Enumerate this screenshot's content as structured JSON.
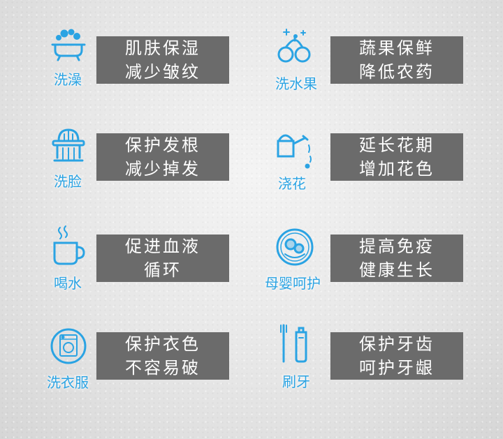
{
  "items": [
    {
      "label": "洗澡",
      "icon": "bathtub-icon",
      "line1": "肌肤保湿",
      "line2": "减少皱纹"
    },
    {
      "label": "洗水果",
      "icon": "fruit-icon",
      "line1": "蔬果保鲜",
      "line2": "降低农药"
    },
    {
      "label": "洗脸",
      "icon": "washbasin-icon",
      "line1": "保护发根",
      "line2": "减少掉发"
    },
    {
      "label": "浇花",
      "icon": "watering-can-icon",
      "line1": "延长花期",
      "line2": "增加花色"
    },
    {
      "label": "喝水",
      "icon": "cup-icon",
      "line1": "促进血液",
      "line2": "循环"
    },
    {
      "label": "母婴呵护",
      "icon": "baby-icon",
      "line1": "提高免疫",
      "line2": "健康生长"
    },
    {
      "label": "洗衣服",
      "icon": "washing-machine-icon",
      "line1": "保护衣色",
      "line2": "不容易破"
    },
    {
      "label": "刷牙",
      "icon": "toothbrush-icon",
      "line1": "保护牙齿",
      "line2": "呵护牙龈"
    }
  ],
  "colors": {
    "icon": "#2aa3e3",
    "box": "#6b6b6b",
    "text": "#ffffff"
  }
}
